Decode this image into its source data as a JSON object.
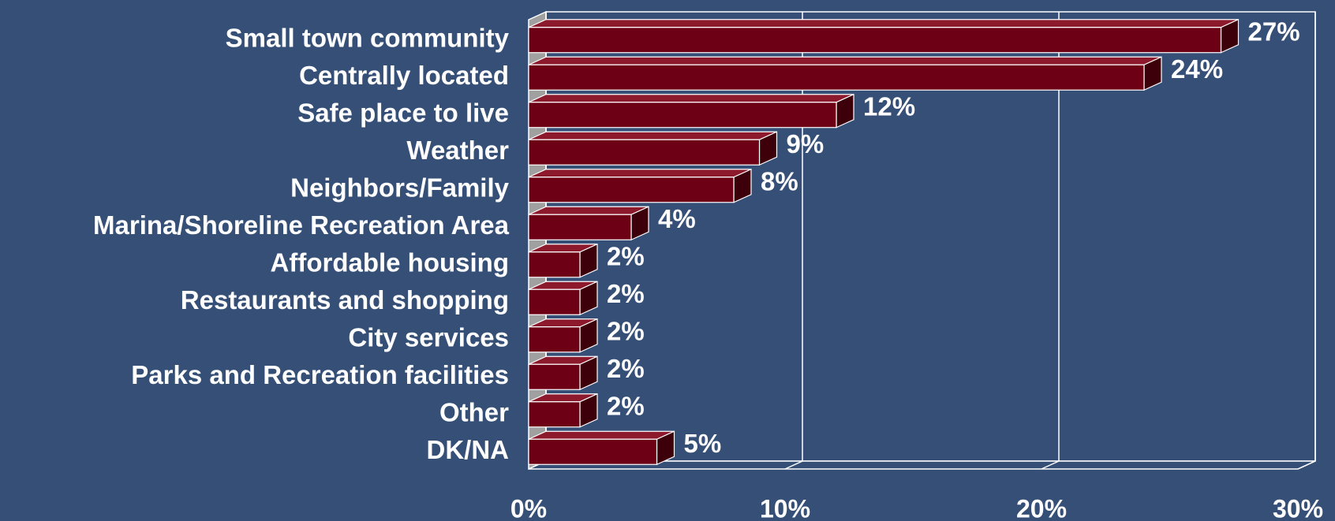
{
  "chart_data": {
    "type": "bar",
    "orientation": "horizontal",
    "categories": [
      "Small town community",
      "Centrally located",
      "Safe place to live",
      "Weather",
      "Neighbors/Family",
      "Marina/Shoreline Recreation Area",
      "Affordable housing",
      "Restaurants and shopping",
      "City services",
      "Parks and Recreation facilities",
      "Other",
      "DK/NA"
    ],
    "values": [
      27,
      24,
      12,
      9,
      8,
      4,
      2,
      2,
      2,
      2,
      2,
      5
    ],
    "value_labels": [
      "27%",
      "24%",
      "12%",
      "9%",
      "8%",
      "4%",
      "2%",
      "2%",
      "2%",
      "2%",
      "2%",
      "5%"
    ],
    "color": "#6e0016",
    "xlim": [
      0,
      30
    ],
    "xticks": [
      {
        "value": 0,
        "label": "0%"
      },
      {
        "value": 10,
        "label": "10%"
      },
      {
        "value": 20,
        "label": "20%"
      },
      {
        "value": 30,
        "label": "30%"
      }
    ],
    "grid": true
  }
}
